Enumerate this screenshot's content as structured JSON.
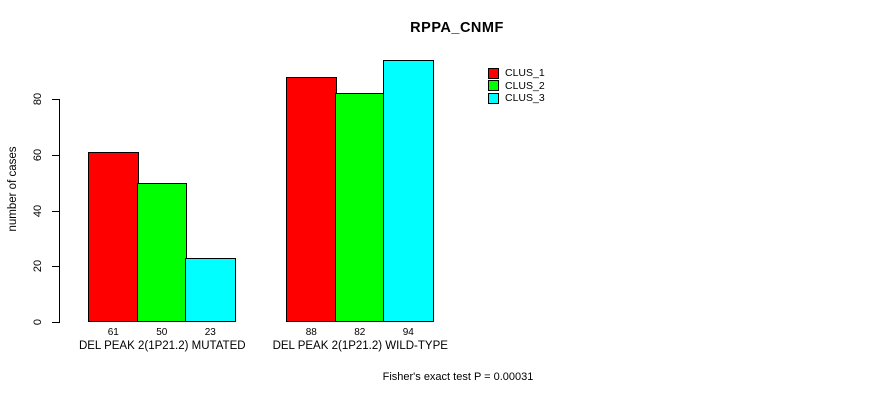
{
  "chart_data": {
    "type": "bar",
    "title": "RPPA_CNMF",
    "ylabel": "number of cases",
    "xlabel": "",
    "categories": [
      "DEL PEAK 2(1P21.2) MUTATED",
      "DEL PEAK 2(1P21.2) WILD-TYPE"
    ],
    "series": [
      {
        "name": "CLUS_1",
        "color": "#ff0000",
        "values": [
          61,
          88
        ]
      },
      {
        "name": "CLUS_2",
        "color": "#00ff00",
        "values": [
          50,
          82
        ]
      },
      {
        "name": "CLUS_3",
        "color": "#00ffff",
        "values": [
          23,
          94
        ]
      }
    ],
    "show_values_under_bars": true,
    "y_ticks": [
      0,
      20,
      40,
      60,
      80
    ],
    "ylim": [
      0,
      94
    ],
    "grid": false,
    "legend_position": "top-right",
    "legend_entries": [
      "CLUS_1",
      "CLUS_2",
      "CLUS_3"
    ],
    "annotation": "Fisher's exact test P = 0.00031",
    "colors": {
      "bar_border": "#000000",
      "axis": "#000000",
      "background": "#ffffff",
      "text": "#000000"
    }
  }
}
